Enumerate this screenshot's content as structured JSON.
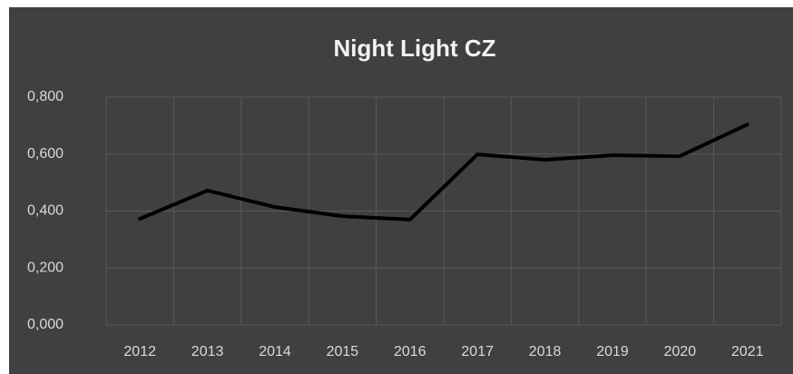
{
  "chart_data": {
    "type": "line",
    "title": "Night Light CZ",
    "categories": [
      "2012",
      "2013",
      "2014",
      "2015",
      "2016",
      "2017",
      "2018",
      "2019",
      "2020",
      "2021"
    ],
    "series": [
      {
        "color": "#000000",
        "values": [
          0.373,
          0.472,
          0.414,
          0.382,
          0.37,
          0.599,
          0.58,
          0.596,
          0.593,
          0.704
        ]
      }
    ],
    "ylim": [
      0,
      0.8
    ],
    "yticks": [
      {
        "value": 0,
        "label": "0,000"
      },
      {
        "value": 0.2,
        "label": "0,200"
      },
      {
        "value": 0.4,
        "label": "0,400"
      },
      {
        "value": 0.6,
        "label": "0,600"
      },
      {
        "value": 0.8,
        "label": "0,800"
      }
    ],
    "grid": true
  }
}
